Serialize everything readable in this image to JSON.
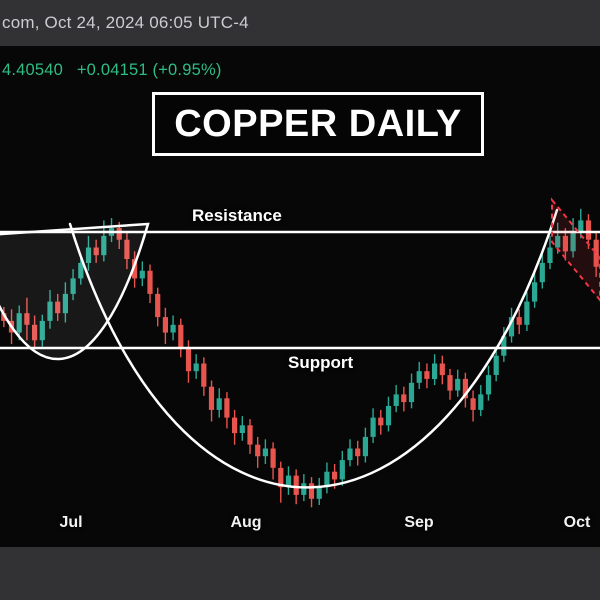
{
  "status_bar": {
    "text": "com, Oct 24, 2024 06:05 UTC-4"
  },
  "quote": {
    "price": "4.40540",
    "change": "+0.04151 (+0.95%)",
    "color": "#2ebd85"
  },
  "title_box": {
    "label": "COPPER DAILY"
  },
  "annotations": {
    "resistance_label": "Resistance",
    "support_label": "Support"
  },
  "x_axis": {
    "labels": [
      "Jul",
      "Aug",
      "Sep",
      "Oct"
    ]
  },
  "chart_data": {
    "type": "candlestick",
    "title": "COPPER DAILY",
    "symbol_price": 4.4054,
    "change_abs": 0.04151,
    "change_pct": 0.95,
    "x_tick_labels": [
      "Jul",
      "Aug",
      "Sep",
      "Oct"
    ],
    "levels": {
      "resistance": 4.45,
      "support": 4.3
    },
    "ylim": [
      4.09,
      4.52
    ],
    "grid": false,
    "up_color": "#2aa893",
    "down_color": "#e8544e",
    "line_color": "#ffffff",
    "flag_color": "#f23645",
    "pattern": "double cup with resistance breakout and dashed bull-flag at top right",
    "candles": [
      [
        4.345,
        4.353,
        4.327,
        4.335
      ],
      [
        4.335,
        4.35,
        4.305,
        4.32
      ],
      [
        4.32,
        4.355,
        4.31,
        4.345
      ],
      [
        4.345,
        4.365,
        4.31,
        4.33
      ],
      [
        4.33,
        4.342,
        4.298,
        4.31
      ],
      [
        4.31,
        4.343,
        4.302,
        4.335
      ],
      [
        4.335,
        4.375,
        4.325,
        4.36
      ],
      [
        4.36,
        4.37,
        4.335,
        4.345
      ],
      [
        4.345,
        4.385,
        4.333,
        4.37
      ],
      [
        4.37,
        4.402,
        4.362,
        4.39
      ],
      [
        4.39,
        4.418,
        4.382,
        4.41
      ],
      [
        4.41,
        4.445,
        4.4,
        4.43
      ],
      [
        4.43,
        4.44,
        4.41,
        4.42
      ],
      [
        4.42,
        4.465,
        4.412,
        4.445
      ],
      [
        4.445,
        4.468,
        4.437,
        4.455
      ],
      [
        4.455,
        4.463,
        4.428,
        4.44
      ],
      [
        4.44,
        4.45,
        4.402,
        4.415
      ],
      [
        4.415,
        4.425,
        4.378,
        4.39
      ],
      [
        4.39,
        4.412,
        4.38,
        4.4
      ],
      [
        4.4,
        4.408,
        4.358,
        4.37
      ],
      [
        4.37,
        4.378,
        4.328,
        4.34
      ],
      [
        4.34,
        4.352,
        4.305,
        4.32
      ],
      [
        4.32,
        4.342,
        4.31,
        4.33
      ],
      [
        4.33,
        4.338,
        4.288,
        4.3
      ],
      [
        4.3,
        4.31,
        4.255,
        4.27
      ],
      [
        4.27,
        4.292,
        4.26,
        4.28
      ],
      [
        4.28,
        4.288,
        4.238,
        4.25
      ],
      [
        4.25,
        4.258,
        4.205,
        4.22
      ],
      [
        4.22,
        4.248,
        4.21,
        4.235
      ],
      [
        4.235,
        4.243,
        4.196,
        4.21
      ],
      [
        4.21,
        4.22,
        4.175,
        4.19
      ],
      [
        4.19,
        4.212,
        4.18,
        4.2
      ],
      [
        4.2,
        4.208,
        4.163,
        4.175
      ],
      [
        4.175,
        4.185,
        4.145,
        4.16
      ],
      [
        4.16,
        4.182,
        4.15,
        4.17
      ],
      [
        4.17,
        4.178,
        4.13,
        4.145
      ],
      [
        4.145,
        4.153,
        4.1,
        4.12
      ],
      [
        4.12,
        4.147,
        4.11,
        4.135
      ],
      [
        4.135,
        4.143,
        4.098,
        4.11
      ],
      [
        4.11,
        4.137,
        4.102,
        4.125
      ],
      [
        4.125,
        4.133,
        4.094,
        4.105
      ],
      [
        4.105,
        4.132,
        4.097,
        4.12
      ],
      [
        4.12,
        4.152,
        4.112,
        4.14
      ],
      [
        4.14,
        4.15,
        4.118,
        4.13
      ],
      [
        4.13,
        4.167,
        4.122,
        4.155
      ],
      [
        4.155,
        4.182,
        4.147,
        4.17
      ],
      [
        4.17,
        4.18,
        4.148,
        4.16
      ],
      [
        4.16,
        4.197,
        4.152,
        4.185
      ],
      [
        4.185,
        4.222,
        4.177,
        4.21
      ],
      [
        4.21,
        4.22,
        4.188,
        4.2
      ],
      [
        4.2,
        4.237,
        4.192,
        4.225
      ],
      [
        4.225,
        4.252,
        4.217,
        4.24
      ],
      [
        4.24,
        4.25,
        4.218,
        4.23
      ],
      [
        4.23,
        4.267,
        4.222,
        4.255
      ],
      [
        4.255,
        4.282,
        4.247,
        4.27
      ],
      [
        4.27,
        4.28,
        4.248,
        4.26
      ],
      [
        4.26,
        4.292,
        4.252,
        4.28
      ],
      [
        4.28,
        4.29,
        4.253,
        4.265
      ],
      [
        4.265,
        4.273,
        4.233,
        4.245
      ],
      [
        4.245,
        4.272,
        4.237,
        4.26
      ],
      [
        4.26,
        4.268,
        4.223,
        4.235
      ],
      [
        4.235,
        4.245,
        4.205,
        4.22
      ],
      [
        4.22,
        4.252,
        4.212,
        4.24
      ],
      [
        4.24,
        4.277,
        4.232,
        4.265
      ],
      [
        4.265,
        4.302,
        4.257,
        4.29
      ],
      [
        4.29,
        4.327,
        4.282,
        4.315
      ],
      [
        4.315,
        4.352,
        4.307,
        4.34
      ],
      [
        4.34,
        4.35,
        4.318,
        4.33
      ],
      [
        4.33,
        4.372,
        4.322,
        4.36
      ],
      [
        4.36,
        4.397,
        4.352,
        4.385
      ],
      [
        4.385,
        4.422,
        4.377,
        4.41
      ],
      [
        4.41,
        4.445,
        4.402,
        4.43
      ],
      [
        4.43,
        4.462,
        4.422,
        4.445
      ],
      [
        4.445,
        4.455,
        4.413,
        4.425
      ],
      [
        4.425,
        4.468,
        4.417,
        4.45
      ],
      [
        4.45,
        4.48,
        4.442,
        4.465
      ],
      [
        4.465,
        4.473,
        4.428,
        4.44
      ],
      [
        4.44,
        4.45,
        4.392,
        4.405
      ]
    ]
  }
}
